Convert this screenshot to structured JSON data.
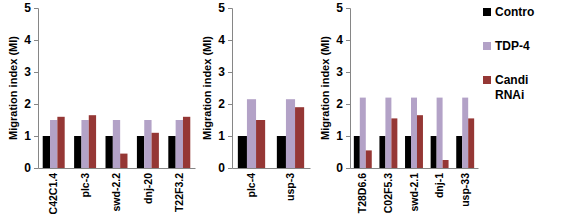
{
  "chart_data": [
    {
      "type": "bar",
      "y_label": "Migration index (MI)",
      "categories": [
        "C42C1.4",
        "plc-3",
        "swd-2.2",
        "dnj-20",
        "T22F3.2"
      ],
      "series": [
        {
          "color": "#000000",
          "values": [
            1,
            1,
            1,
            1,
            1
          ]
        },
        {
          "color": "#b3a2c7",
          "values": [
            1.5,
            1.5,
            1.5,
            1.5,
            1.5
          ]
        },
        {
          "color": "#953735",
          "values": [
            1.6,
            1.65,
            0.45,
            1.1,
            1.6
          ]
        }
      ],
      "ylim": [
        0,
        5
      ],
      "yticks": [
        0,
        1,
        2,
        3,
        4,
        5
      ]
    },
    {
      "type": "bar",
      "y_label": "Migration index (MI)",
      "categories": [
        "plc-4",
        "usp-3"
      ],
      "series": [
        {
          "color": "#000000",
          "values": [
            1,
            1
          ]
        },
        {
          "color": "#b3a2c7",
          "values": [
            2.15,
            2.15
          ]
        },
        {
          "color": "#953735",
          "values": [
            1.5,
            1.9
          ]
        }
      ],
      "ylim": [
        0,
        5
      ],
      "yticks": [
        0,
        1,
        2,
        3,
        4,
        5
      ]
    },
    {
      "type": "bar",
      "y_label": "Migration index (MI)",
      "categories": [
        "T28D6.6",
        "C02F5.3",
        "swd-2.1",
        "dnj-1",
        "usp-33"
      ],
      "series": [
        {
          "name": "Contro",
          "color": "#000000",
          "values": [
            1,
            1,
            1,
            1,
            1
          ]
        },
        {
          "name": "TDP-4",
          "color": "#b3a2c7",
          "values": [
            2.2,
            2.2,
            2.2,
            2.2,
            2.2
          ]
        },
        {
          "name": "Candi RNAi",
          "color": "#953735",
          "values": [
            0.55,
            1.55,
            1.65,
            0.25,
            1.55
          ]
        }
      ],
      "ylim": [
        0,
        5
      ],
      "yticks": [
        0,
        1,
        2,
        3,
        4,
        5
      ],
      "legend": "right"
    }
  ]
}
